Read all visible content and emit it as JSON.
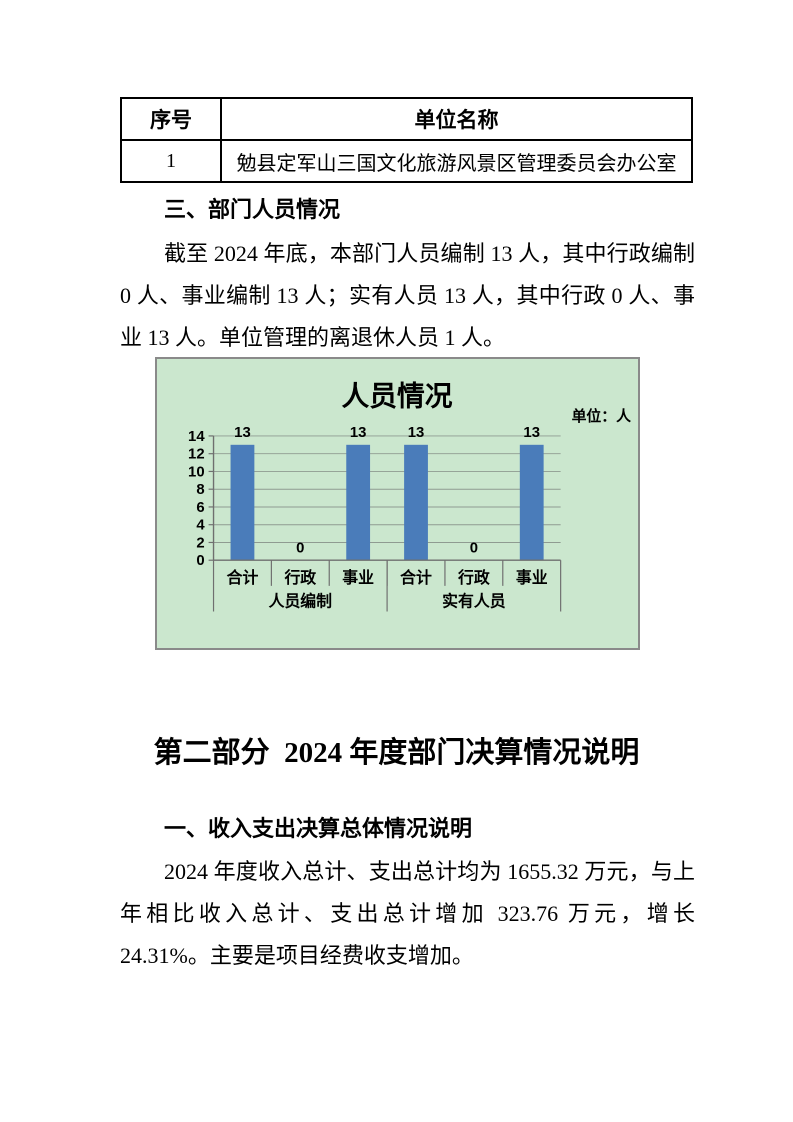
{
  "table": {
    "headers": [
      "序号",
      "单位名称"
    ],
    "rows": [
      [
        "1",
        "勉县定军山三国文化旅游风景区管理委员会办公室"
      ]
    ]
  },
  "section3": {
    "heading": "三、部门人员情况",
    "paragraph": "截至 2024 年底，本部门人员编制 13 人，其中行政编制 0 人、事业编制 13 人；实有人员 13 人，其中行政 0 人、事业 13 人。单位管理的离退休人员 1 人。"
  },
  "chart_data": {
    "type": "bar",
    "title": "人员情况",
    "unit_label": "单位：人",
    "groups": [
      {
        "label": "人员编制",
        "categories": [
          "合计",
          "行政",
          "事业"
        ],
        "values": [
          13,
          0,
          13
        ]
      },
      {
        "label": "实有人员",
        "categories": [
          "合计",
          "行政",
          "事业"
        ],
        "values": [
          13,
          0,
          13
        ]
      }
    ],
    "ylim": [
      0,
      14
    ],
    "ytick_step": 2,
    "yticks": [
      0,
      2,
      4,
      6,
      8,
      10,
      12,
      14
    ],
    "grid": true,
    "legend": "none",
    "bar_color": "#4a7cba",
    "background_color": "#cbe7ce",
    "axis_color": "#6f6f6f",
    "gridline_color": "#8f9b91"
  },
  "part2": {
    "heading": "第二部分  2024 年度部门决算情况说明",
    "section1_heading": "一、收入支出决算总体情况说明",
    "paragraph": "2024 年度收入总计、支出总计均为 1655.32 万元，与上年相比收入总计、支出总计增加 323.76 万元，增长 24.31%。主要是项目经费收支增加。"
  }
}
